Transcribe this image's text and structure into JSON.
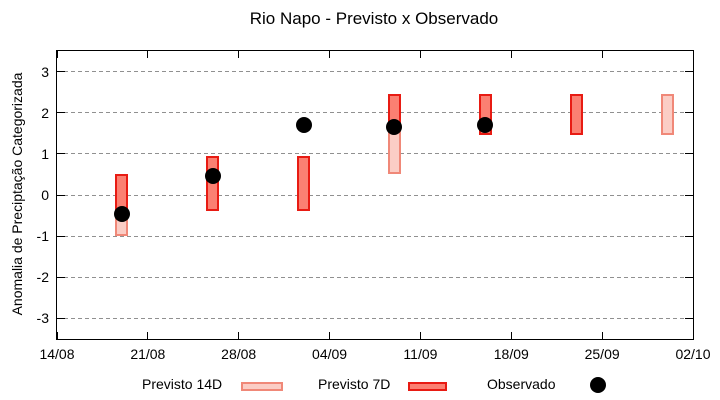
{
  "colors": {
    "p14_fill": "#fbcdc5",
    "p14_border": "#f08878",
    "p7_fill": "#fb8072",
    "p7_border": "#e81b13",
    "obs_fill": "#000000",
    "grid": "#909090",
    "axis": "#000000"
  },
  "chart_data": {
    "type": "bar",
    "title": "Rio Napo - Previsto x Observado",
    "xlabel": "",
    "ylabel": "Anomalia de Preciptação Categorizada",
    "ylim": [
      -3.5,
      3.5
    ],
    "yticks": [
      3,
      2,
      1,
      0,
      -1,
      -2,
      -3
    ],
    "xticks": {
      "labels": [
        "14/08",
        "21/08",
        "28/08",
        "04/09",
        "11/09",
        "18/09",
        "25/09",
        "02/10"
      ],
      "interval_days": 7,
      "span_days": 49
    },
    "grid": "horizontal-dashed-gray",
    "legend_position": "bottom",
    "series": [
      {
        "name": "Previsto 14D",
        "type": "range_bar",
        "swatch": "p14",
        "points": [
          {
            "day": 5,
            "date": "19/08",
            "low": -1.0,
            "high": 0.5
          },
          {
            "day": 26,
            "date": "09/09",
            "low": 0.5,
            "high": 2.45
          },
          {
            "day": 47,
            "date": "30/09",
            "low": 1.45,
            "high": 2.45
          }
        ]
      },
      {
        "name": "Previsto 7D",
        "type": "range_bar",
        "swatch": "p7",
        "points": [
          {
            "day": 5,
            "date": "19/08",
            "low": -0.55,
            "high": 0.5
          },
          {
            "day": 12,
            "date": "26/08",
            "low": -0.4,
            "high": 0.95
          },
          {
            "day": 19,
            "date": "02/09",
            "low": -0.4,
            "high": 0.95
          },
          {
            "day": 26,
            "date": "09/09",
            "low": 1.7,
            "high": 2.45
          },
          {
            "day": 33,
            "date": "16/09",
            "low": 1.45,
            "high": 2.45
          },
          {
            "day": 40,
            "date": "23/09",
            "low": 1.45,
            "high": 2.45
          }
        ]
      },
      {
        "name": "Observado",
        "type": "scatter",
        "swatch": "obs",
        "points": [
          {
            "day": 5,
            "date": "19/08",
            "value": -0.45
          },
          {
            "day": 12,
            "date": "26/08",
            "value": 0.45
          },
          {
            "day": 19,
            "date": "02/09",
            "value": 1.7
          },
          {
            "day": 26,
            "date": "09/09",
            "value": 1.65
          },
          {
            "day": 33,
            "date": "16/09",
            "value": 1.7
          }
        ]
      }
    ],
    "legend": [
      {
        "label": "Previsto 14D",
        "swatch": "p14"
      },
      {
        "label": "Previsto 7D",
        "swatch": "p7"
      },
      {
        "label": "Observado",
        "swatch": "obs"
      }
    ]
  }
}
